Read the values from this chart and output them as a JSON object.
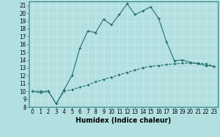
{
  "title": "",
  "xlabel": "Humidex (Indice chaleur)",
  "ylabel": "",
  "bg_color": "#b2e0e0",
  "grid_color": "#c8e8e8",
  "line_color": "#1a6b6b",
  "xlim": [
    -0.5,
    23.5
  ],
  "ylim": [
    8,
    21.5
  ],
  "xticks": [
    0,
    1,
    2,
    3,
    4,
    5,
    6,
    7,
    8,
    9,
    10,
    11,
    12,
    13,
    14,
    15,
    16,
    17,
    18,
    19,
    20,
    21,
    22,
    23
  ],
  "yticks": [
    8,
    9,
    10,
    11,
    12,
    13,
    14,
    15,
    16,
    17,
    18,
    19,
    20,
    21
  ],
  "line1_x": [
    0,
    1,
    2,
    3,
    4,
    5,
    6,
    7,
    8,
    9,
    10,
    11,
    12,
    13,
    14,
    15,
    16,
    17,
    18,
    19,
    20,
    21,
    22,
    23
  ],
  "line1_y": [
    10,
    9.8,
    10,
    8.4,
    10.2,
    12,
    15.5,
    17.7,
    17.5,
    19.2,
    18.5,
    19.8,
    21.2,
    19.8,
    20.3,
    20.8,
    19.3,
    16.3,
    13.9,
    14.0,
    13.7,
    13.5,
    13.3,
    13.2
  ],
  "line2_x": [
    0,
    1,
    2,
    3,
    4,
    5,
    6,
    7,
    8,
    9,
    10,
    11,
    12,
    13,
    14,
    15,
    16,
    17,
    18,
    19,
    20,
    21,
    22,
    23
  ],
  "line2_y": [
    10,
    10,
    10,
    8.4,
    10,
    10.2,
    10.5,
    10.8,
    11.2,
    11.5,
    11.8,
    12.1,
    12.4,
    12.7,
    13.0,
    13.2,
    13.3,
    13.4,
    13.5,
    13.6,
    13.6,
    13.6,
    13.5,
    13.2
  ],
  "tick_fontsize": 5.5,
  "xlabel_fontsize": 7
}
